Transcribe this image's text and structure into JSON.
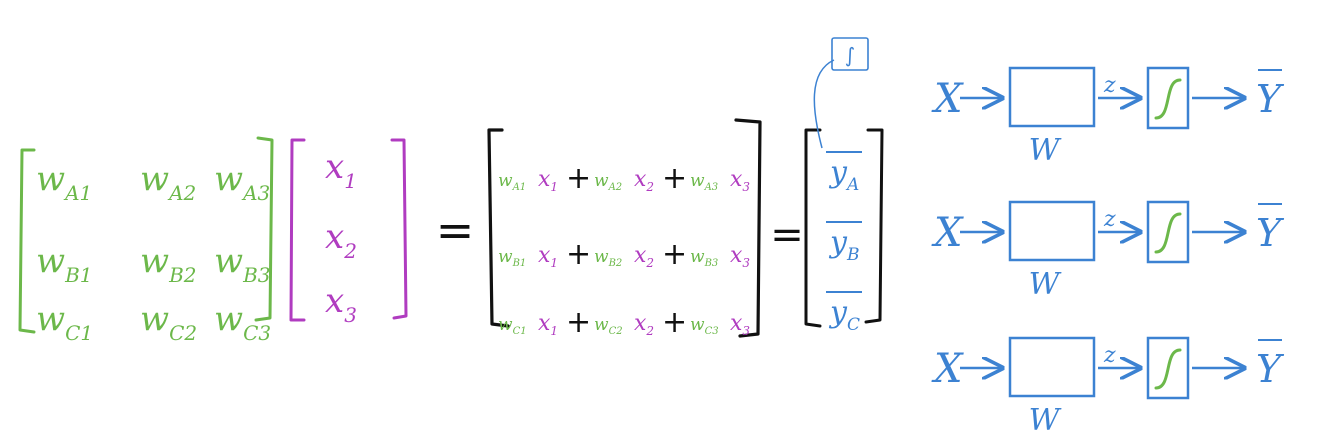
{
  "colors": {
    "green": "#6cb84a",
    "purple": "#b03cc0",
    "black": "#111111",
    "blue": "#3c82d2"
  },
  "weight_matrix": {
    "rows": [
      [
        {
          "base": "w",
          "sub": "A1"
        },
        {
          "base": "w",
          "sub": "A2"
        },
        {
          "base": "w",
          "sub": "A3"
        }
      ],
      [
        {
          "base": "w",
          "sub": "B1"
        },
        {
          "base": "w",
          "sub": "B2"
        },
        {
          "base": "w",
          "sub": "B3"
        }
      ],
      [
        {
          "base": "w",
          "sub": "C1"
        },
        {
          "base": "w",
          "sub": "C2"
        },
        {
          "base": "w",
          "sub": "C3"
        }
      ]
    ]
  },
  "input_vector": [
    {
      "base": "x",
      "sub": "1"
    },
    {
      "base": "x",
      "sub": "2"
    },
    {
      "base": "x",
      "sub": "3"
    }
  ],
  "equals_sign": "=",
  "product_rows": [
    [
      {
        "w": "A1",
        "x": "1"
      },
      {
        "w": "A2",
        "x": "2"
      },
      {
        "w": "A3",
        "x": "3"
      }
    ],
    [
      {
        "w": "B1",
        "x": "1"
      },
      {
        "w": "B2",
        "x": "2"
      },
      {
        "w": "B3",
        "x": "3"
      }
    ],
    [
      {
        "w": "C1",
        "x": "1"
      },
      {
        "w": "C2",
        "x": "2"
      },
      {
        "w": "C3",
        "x": "3"
      }
    ]
  ],
  "plus": "+",
  "output_vector": [
    {
      "base": "y",
      "sub": "A"
    },
    {
      "base": "y",
      "sub": "B"
    },
    {
      "base": "y",
      "sub": "C"
    }
  ],
  "sigmoid_symbol": "∫",
  "network_row": {
    "input": "X",
    "weight_label": "W",
    "z_label": "z",
    "output": "Y"
  },
  "network_row_count": 3
}
